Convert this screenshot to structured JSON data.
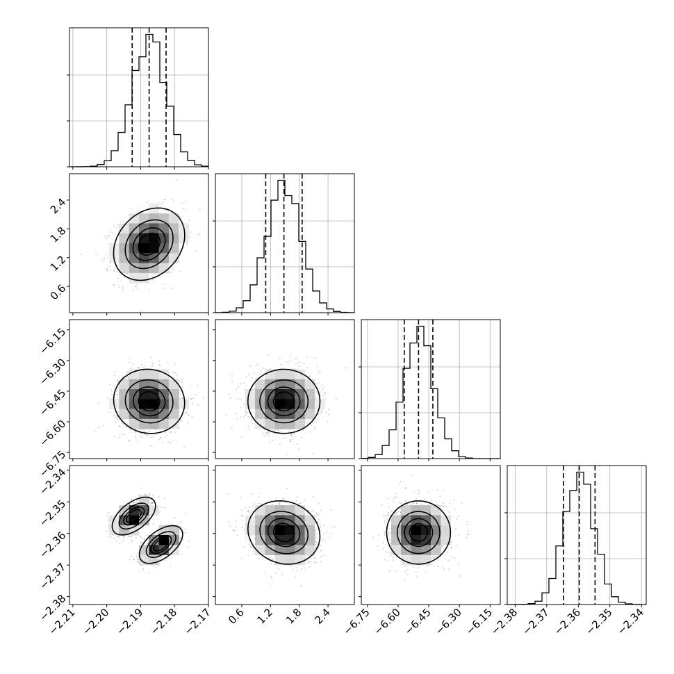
{
  "chart_data": {
    "type": "corner",
    "params": [
      {
        "mean": -2.1875,
        "std": 0.005,
        "q": [
          -2.1925,
          -2.1875,
          -2.1825
        ],
        "range": [
          -2.211,
          -2.17
        ],
        "ticks": [
          -2.21,
          -2.2,
          -2.19,
          -2.18,
          -2.17
        ],
        "tick_labels": [
          "−2.21",
          "−2.20",
          "−2.19",
          "−2.18",
          "−2.17"
        ]
      },
      {
        "mean": 1.48,
        "std": 0.36,
        "q": [
          1.1,
          1.48,
          1.86
        ],
        "range": [
          0.05,
          2.95
        ],
        "ticks": [
          0.6,
          1.2,
          1.8,
          2.4
        ],
        "tick_labels": [
          "0.6",
          "1.2",
          "1.8",
          "2.4"
        ]
      },
      {
        "mean": -6.5,
        "std": 0.075,
        "q": [
          -6.57,
          -6.5,
          -6.43
        ],
        "range": [
          -6.78,
          -6.1
        ],
        "ticks": [
          -6.75,
          -6.6,
          -6.45,
          -6.3,
          -6.15
        ],
        "tick_labels": [
          "−6.75",
          "−6.60",
          "−6.45",
          "−6.30",
          "−6.15"
        ]
      },
      {
        "mean": -2.3597,
        "std": 0.0048,
        "q": [
          -2.3647,
          -2.3597,
          -2.3547
        ],
        "range": [
          -2.3825,
          -2.3385
        ],
        "ticks": [
          -2.38,
          -2.37,
          -2.36,
          -2.35,
          -2.34
        ],
        "tick_labels": [
          "−2.38",
          "−2.37",
          "−2.36",
          "−2.35",
          "−2.34"
        ]
      }
    ],
    "correlations": [
      [
        0,
        1,
        0.25
      ],
      [
        0,
        2,
        -0.05
      ],
      [
        1,
        2,
        0.0
      ],
      [
        1,
        3,
        -0.12
      ],
      [
        2,
        3,
        0.0
      ]
    ],
    "bimodal_pair": {
      "x_param": 0,
      "y_param": 3,
      "modes": [
        {
          "x": -2.192,
          "y": -2.3545,
          "weight": 0.5
        },
        {
          "x": -2.184,
          "y": -2.3635,
          "weight": 0.5
        }
      ]
    },
    "hist_bins": 20,
    "contour_levels": [
      0.118,
      0.393,
      0.675,
      0.864
    ],
    "quantiles": [
      0.16,
      0.5,
      0.84
    ],
    "grid": true
  }
}
